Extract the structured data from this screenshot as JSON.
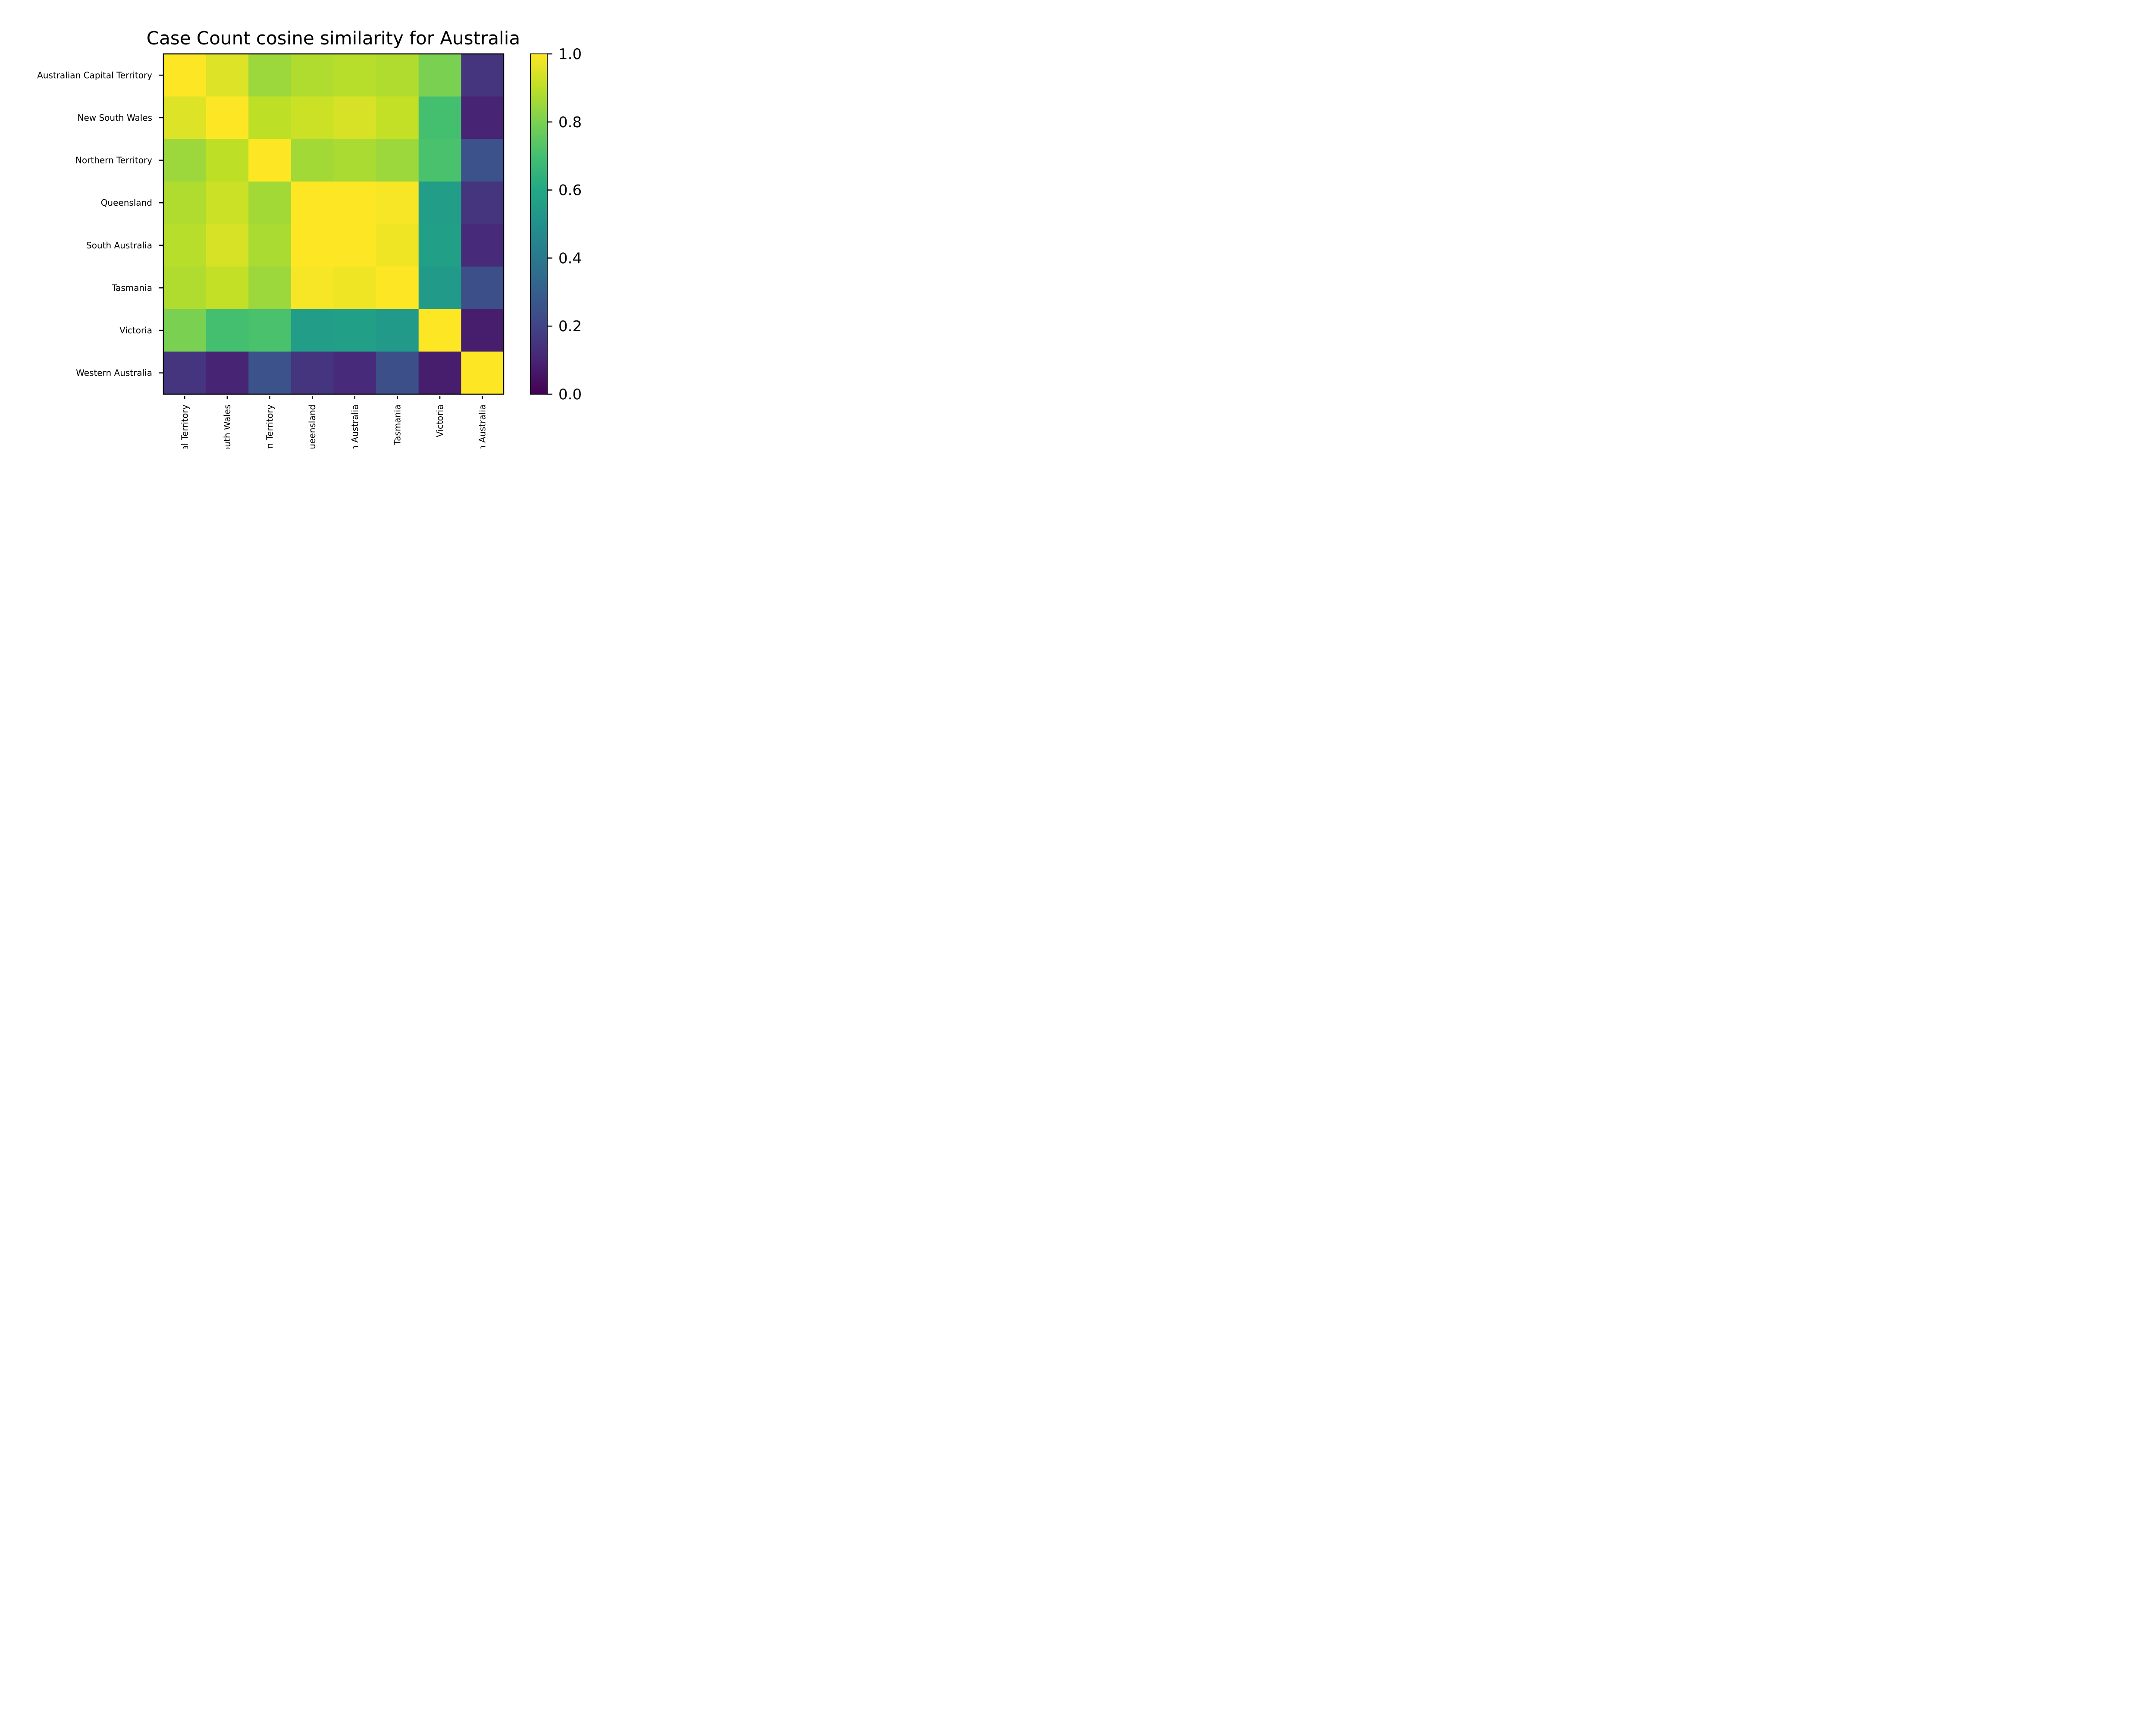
{
  "chart_data": {
    "type": "heatmap",
    "title": "Case Count cosine similarity for Australia",
    "row_labels": [
      "Australian Capital Territory",
      "New South Wales",
      "Northern Territory",
      "Queensland",
      "South Australia",
      "Tasmania",
      "Victoria",
      "Western Australia"
    ],
    "col_labels": [
      "Australian Capital Territory",
      "New South Wales",
      "Northern Territory",
      "Queensland",
      "South Australia",
      "Tasmania",
      "Victoria",
      "Western Australia"
    ],
    "values": [
      [
        1.0,
        0.95,
        0.85,
        0.88,
        0.89,
        0.88,
        0.8,
        0.15
      ],
      [
        0.95,
        1.0,
        0.9,
        0.92,
        0.94,
        0.91,
        0.7,
        0.1
      ],
      [
        0.85,
        0.9,
        1.0,
        0.86,
        0.87,
        0.85,
        0.71,
        0.25
      ],
      [
        0.88,
        0.92,
        0.86,
        1.0,
        1.0,
        0.99,
        0.55,
        0.15
      ],
      [
        0.89,
        0.94,
        0.87,
        1.0,
        1.0,
        0.98,
        0.56,
        0.12
      ],
      [
        0.88,
        0.91,
        0.85,
        0.99,
        0.98,
        1.0,
        0.54,
        0.24
      ],
      [
        0.8,
        0.7,
        0.71,
        0.55,
        0.56,
        0.54,
        1.0,
        0.08
      ],
      [
        0.15,
        0.1,
        0.25,
        0.15,
        0.12,
        0.24,
        0.08,
        1.0
      ]
    ],
    "colormap": "viridis",
    "colorbar": {
      "min": 0.0,
      "max": 1.0,
      "ticks": [
        "0.0",
        "0.2",
        "0.4",
        "0.6",
        "0.8",
        "1.0"
      ]
    },
    "grid": false
  }
}
